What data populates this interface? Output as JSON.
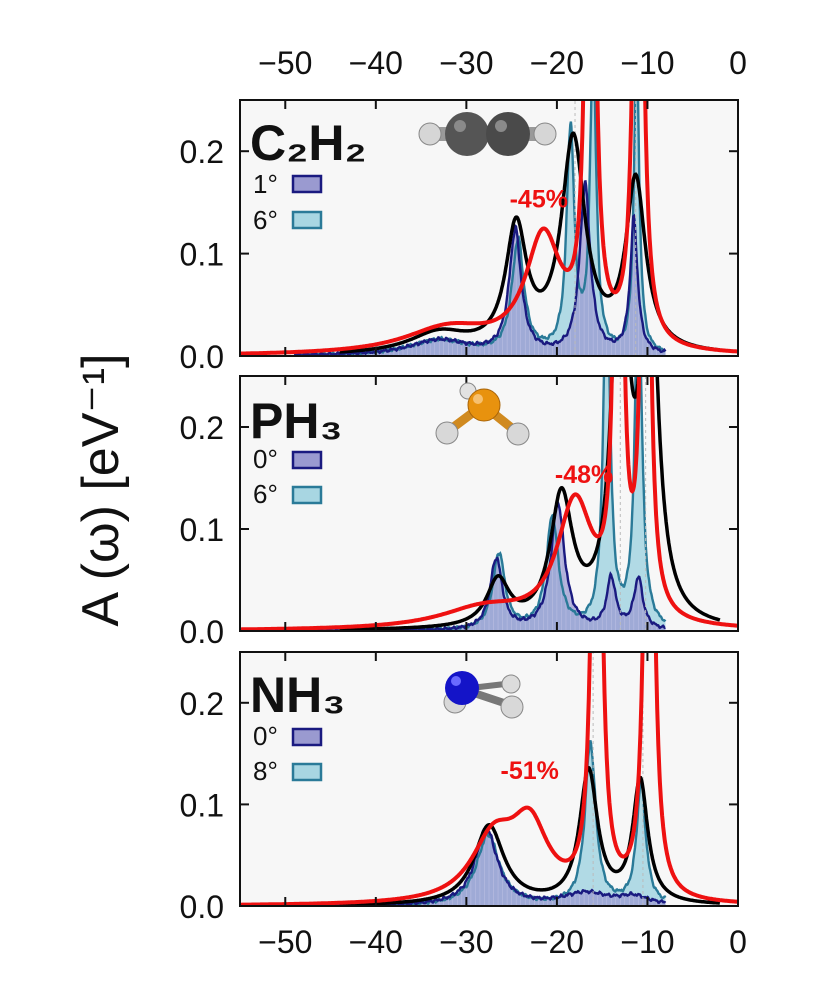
{
  "figure": {
    "ylabel": "A (ω) [eV⁻¹]",
    "x_ticks": [
      "−50",
      "−40",
      "−30",
      "−20",
      "−10",
      "0"
    ],
    "y_ticks": [
      "0.0",
      "0.1",
      "0.2"
    ]
  },
  "colors": {
    "black_curve": "#000000",
    "red_curve": "#ee1111",
    "fill_dark": "#9a9ad0",
    "line_dark": "#1a1a80",
    "fill_light": "#a8d6e2",
    "line_light": "#2a7a98",
    "panel_bg": "#f7f7f7"
  },
  "chart_data": [
    {
      "type": "line",
      "molecule": "C₂H₂",
      "xlim": [
        -55,
        0
      ],
      "ylim": [
        0,
        0.25
      ],
      "legend": [
        {
          "label": "1°",
          "role": "fill_dark"
        },
        {
          "label": "6°",
          "role": "fill_light"
        }
      ],
      "annotation": {
        "text": "-45%",
        "x": -22,
        "y": 0.145
      },
      "curves": {
        "black": [
          {
            "x0": -24.5,
            "a": 0.118,
            "g": 1.4
          },
          {
            "x0": -18.2,
            "a": 0.205,
            "g": 1.6
          },
          {
            "x0": -11.3,
            "a": 0.165,
            "g": 1.3
          },
          {
            "x0": -33,
            "a": 0.02,
            "g": 4
          }
        ],
        "red": [
          {
            "x0": -21.5,
            "a": 0.11,
            "g": 2.4
          },
          {
            "x0": -16.3,
            "a": 0.9,
            "g": 0.45
          },
          {
            "x0": -11.0,
            "a": 0.9,
            "g": 0.45
          },
          {
            "x0": -32,
            "a": 0.025,
            "g": 6
          }
        ],
        "dark": [
          {
            "x0": -24.6,
            "a": 0.12,
            "g": 0.8
          },
          {
            "x0": -16.9,
            "a": 0.165,
            "g": 0.7
          },
          {
            "x0": -11.5,
            "a": 0.13,
            "g": 0.5
          },
          {
            "x0": -33,
            "a": 0.015,
            "g": 4
          }
        ],
        "light": [
          {
            "x0": -24.3,
            "a": 0.11,
            "g": 0.8
          },
          {
            "x0": -18.5,
            "a": 0.22,
            "g": 0.5
          },
          {
            "x0": -16.0,
            "a": 0.3,
            "g": 0.4
          },
          {
            "x0": -11.2,
            "a": 0.3,
            "g": 0.35
          },
          {
            "x0": -33,
            "a": 0.015,
            "g": 4
          }
        ]
      },
      "qp_x": [
        -18.0,
        -11.3
      ]
    },
    {
      "type": "line",
      "molecule": "PH₃",
      "xlim": [
        -55,
        0
      ],
      "ylim": [
        0,
        0.25
      ],
      "legend": [
        {
          "label": "0°",
          "role": "fill_dark"
        },
        {
          "label": "6°",
          "role": "fill_light"
        }
      ],
      "annotation": {
        "text": "-48%",
        "x": -17,
        "y": 0.145
      },
      "curves": {
        "black": [
          {
            "x0": -26.5,
            "a": 0.045,
            "g": 1.5
          },
          {
            "x0": -19.5,
            "a": 0.125,
            "g": 1.5
          },
          {
            "x0": -13.0,
            "a": 0.4,
            "g": 1.0
          },
          {
            "x0": -9.8,
            "a": 0.4,
            "g": 1.0
          }
        ],
        "red": [
          {
            "x0": -18.0,
            "a": 0.12,
            "g": 2.4
          },
          {
            "x0": -13.2,
            "a": 0.9,
            "g": 0.4
          },
          {
            "x0": -10.2,
            "a": 0.9,
            "g": 0.4
          },
          {
            "x0": -28,
            "a": 0.02,
            "g": 6
          }
        ],
        "dark": [
          {
            "x0": -26.7,
            "a": 0.07,
            "g": 0.8
          },
          {
            "x0": -19.9,
            "a": 0.125,
            "g": 0.9
          },
          {
            "x0": -14.0,
            "a": 0.05,
            "g": 0.6
          },
          {
            "x0": -11.0,
            "a": 0.05,
            "g": 0.6
          }
        ],
        "light": [
          {
            "x0": -26.4,
            "a": 0.075,
            "g": 0.8
          },
          {
            "x0": -20.5,
            "a": 0.11,
            "g": 0.8
          },
          {
            "x0": -14.5,
            "a": 0.35,
            "g": 0.45
          },
          {
            "x0": -11.0,
            "a": 0.35,
            "g": 0.45
          }
        ]
      },
      "qp_x": [
        -13.0,
        -10.2
      ]
    },
    {
      "type": "line",
      "molecule": "NH₃",
      "xlim": [
        -55,
        0
      ],
      "ylim": [
        0,
        0.25
      ],
      "legend": [
        {
          "label": "0°",
          "role": "fill_dark"
        },
        {
          "label": "8°",
          "role": "fill_light"
        }
      ],
      "annotation": {
        "text": "-51%",
        "x": -23,
        "y": 0.125
      },
      "curves": {
        "black": [
          {
            "x0": -27.5,
            "a": 0.078,
            "g": 2.0
          },
          {
            "x0": -16.5,
            "a": 0.13,
            "g": 1.2
          },
          {
            "x0": -10.8,
            "a": 0.12,
            "g": 1.0
          }
        ],
        "red": [
          {
            "x0": -27.0,
            "a": 0.06,
            "g": 3.0
          },
          {
            "x0": -23.0,
            "a": 0.07,
            "g": 2.5
          },
          {
            "x0": -15.6,
            "a": 0.9,
            "g": 0.45
          },
          {
            "x0": -9.8,
            "a": 0.9,
            "g": 0.45
          }
        ],
        "dark": [
          {
            "x0": -27.8,
            "a": 0.075,
            "g": 1.5
          },
          {
            "x0": -16.8,
            "a": 0.012,
            "g": 3.0
          },
          {
            "x0": -11.5,
            "a": 0.008,
            "g": 2.0
          }
        ],
        "light": [
          {
            "x0": -27.6,
            "a": 0.07,
            "g": 1.5
          },
          {
            "x0": -16.3,
            "a": 0.16,
            "g": 0.7
          },
          {
            "x0": -10.7,
            "a": 0.12,
            "g": 0.6
          }
        ]
      },
      "qp_x": [
        -16.0,
        -10.5
      ]
    }
  ]
}
